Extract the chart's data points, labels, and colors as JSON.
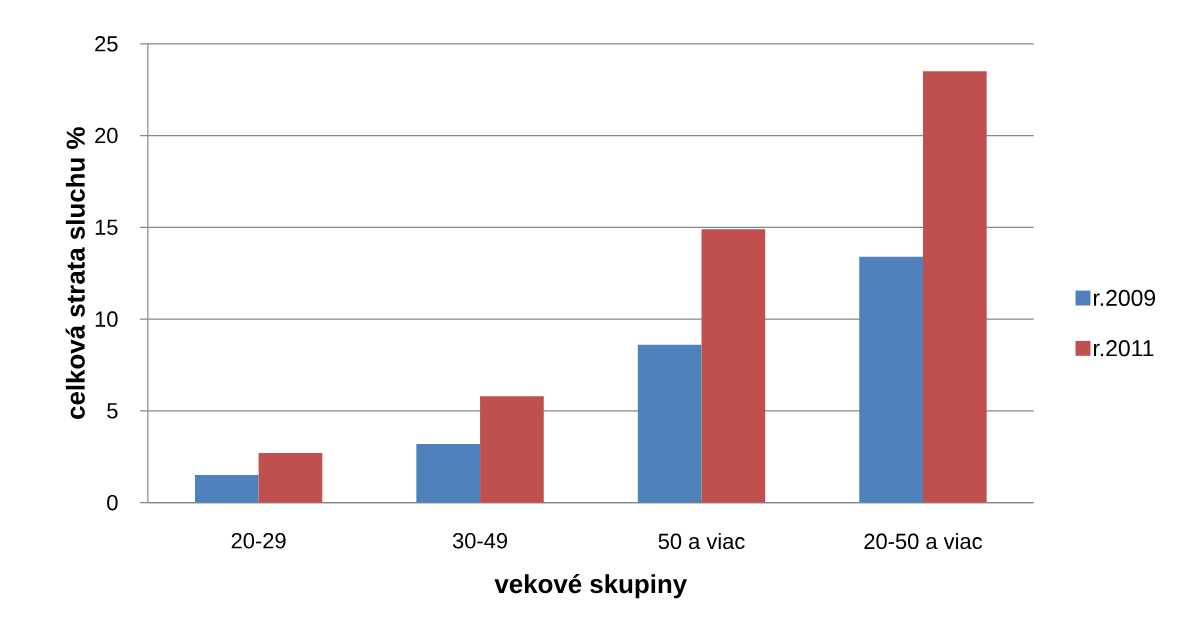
{
  "chart_data": {
    "type": "bar",
    "xlabel": "vekové skupiny",
    "ylabel": "celková strata sluchu %",
    "categories": [
      "20-29",
      "30-49",
      "50 a viac",
      "20-50 a viac"
    ],
    "series": [
      {
        "name": "r.2009",
        "color": "#4f81bd",
        "values": [
          1.5,
          3.2,
          8.6,
          13.4
        ]
      },
      {
        "name": "r.2011",
        "color": "#c0504d",
        "values": [
          2.7,
          5.8,
          14.9,
          23.5
        ]
      }
    ],
    "ylim": [
      0,
      25
    ],
    "yticks": [
      0,
      5,
      10,
      15,
      20,
      25
    ],
    "grid": "y",
    "legend": "right"
  }
}
